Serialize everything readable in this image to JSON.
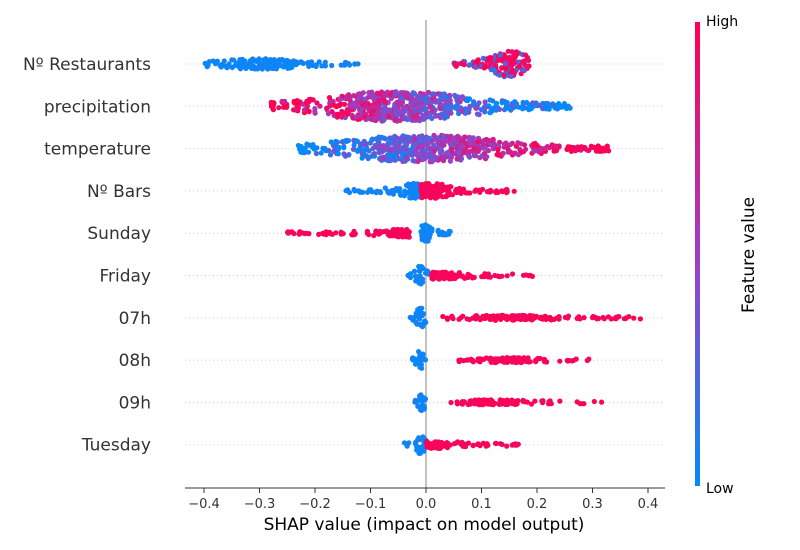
{
  "chart_data": {
    "type": "scatter",
    "subtype": "shap-beeswarm",
    "xlabel": "SHAP value (impact on model output)",
    "xlim": [
      -0.43,
      0.43
    ],
    "xticks": [
      -0.4,
      -0.3,
      -0.2,
      -0.1,
      0.0,
      0.1,
      0.2,
      0.3,
      0.4
    ],
    "xtick_labels": [
      "−0.4",
      "−0.3",
      "−0.2",
      "−0.1",
      "0.0",
      "0.1",
      "0.2",
      "0.3",
      "0.4"
    ],
    "grid": false,
    "colorbar": {
      "label": "Feature value",
      "high_label": "High",
      "low_label": "Low",
      "low_color": "#008bfb",
      "mid_color": "#a23dc2",
      "high_color": "#ff0052"
    },
    "features": [
      {
        "name": "Nº Restaurants",
        "segments": [
          {
            "from": -0.4,
            "to": -0.12,
            "peak": -0.3,
            "height": 0.3,
            "color": "low"
          },
          {
            "from": 0.05,
            "to": 0.19,
            "peak": 0.15,
            "height": 0.85,
            "color": "mixed-high"
          }
        ]
      },
      {
        "name": "precipitation",
        "segments": [
          {
            "from": -0.28,
            "to": 0.26,
            "peak": -0.05,
            "height": 1.0,
            "color": "mixed-rev"
          }
        ]
      },
      {
        "name": "temperature",
        "segments": [
          {
            "from": -0.23,
            "to": 0.33,
            "peak": 0.0,
            "height": 0.9,
            "color": "mixed"
          }
        ]
      },
      {
        "name": "Nº Bars",
        "segments": [
          {
            "from": -0.15,
            "to": -0.01,
            "peak": -0.02,
            "height": 0.45,
            "color": "low"
          },
          {
            "from": -0.01,
            "to": 0.16,
            "peak": 0.01,
            "height": 0.45,
            "color": "high"
          }
        ]
      },
      {
        "name": "Sunday",
        "segments": [
          {
            "from": -0.26,
            "to": -0.03,
            "peak": -0.04,
            "height": 0.2,
            "color": "high"
          },
          {
            "from": -0.01,
            "to": 0.045,
            "peak": 0.0,
            "height": 0.55,
            "color": "low"
          }
        ]
      },
      {
        "name": "Friday",
        "segments": [
          {
            "from": -0.035,
            "to": 0.005,
            "peak": -0.01,
            "height": 0.6,
            "color": "low"
          },
          {
            "from": 0.01,
            "to": 0.2,
            "peak": 0.03,
            "height": 0.18,
            "color": "high"
          }
        ]
      },
      {
        "name": "07h",
        "segments": [
          {
            "from": -0.03,
            "to": 0.0,
            "peak": -0.01,
            "height": 0.65,
            "color": "low"
          },
          {
            "from": 0.03,
            "to": 0.39,
            "peak": 0.15,
            "height": 0.1,
            "color": "high"
          }
        ]
      },
      {
        "name": "08h",
        "segments": [
          {
            "from": -0.025,
            "to": 0.0,
            "peak": -0.01,
            "height": 0.65,
            "color": "low"
          },
          {
            "from": 0.055,
            "to": 0.305,
            "peak": 0.15,
            "height": 0.1,
            "color": "high"
          }
        ]
      },
      {
        "name": "09h",
        "segments": [
          {
            "from": -0.02,
            "to": 0.0,
            "peak": -0.008,
            "height": 0.65,
            "color": "low"
          },
          {
            "from": 0.035,
            "to": 0.32,
            "peak": 0.12,
            "height": 0.1,
            "color": "high"
          }
        ]
      },
      {
        "name": "Tuesday",
        "segments": [
          {
            "from": -0.04,
            "to": 0.0,
            "peak": -0.01,
            "height": 0.55,
            "color": "low"
          },
          {
            "from": 0.0,
            "to": 0.17,
            "peak": 0.02,
            "height": 0.18,
            "color": "high"
          }
        ]
      }
    ]
  }
}
